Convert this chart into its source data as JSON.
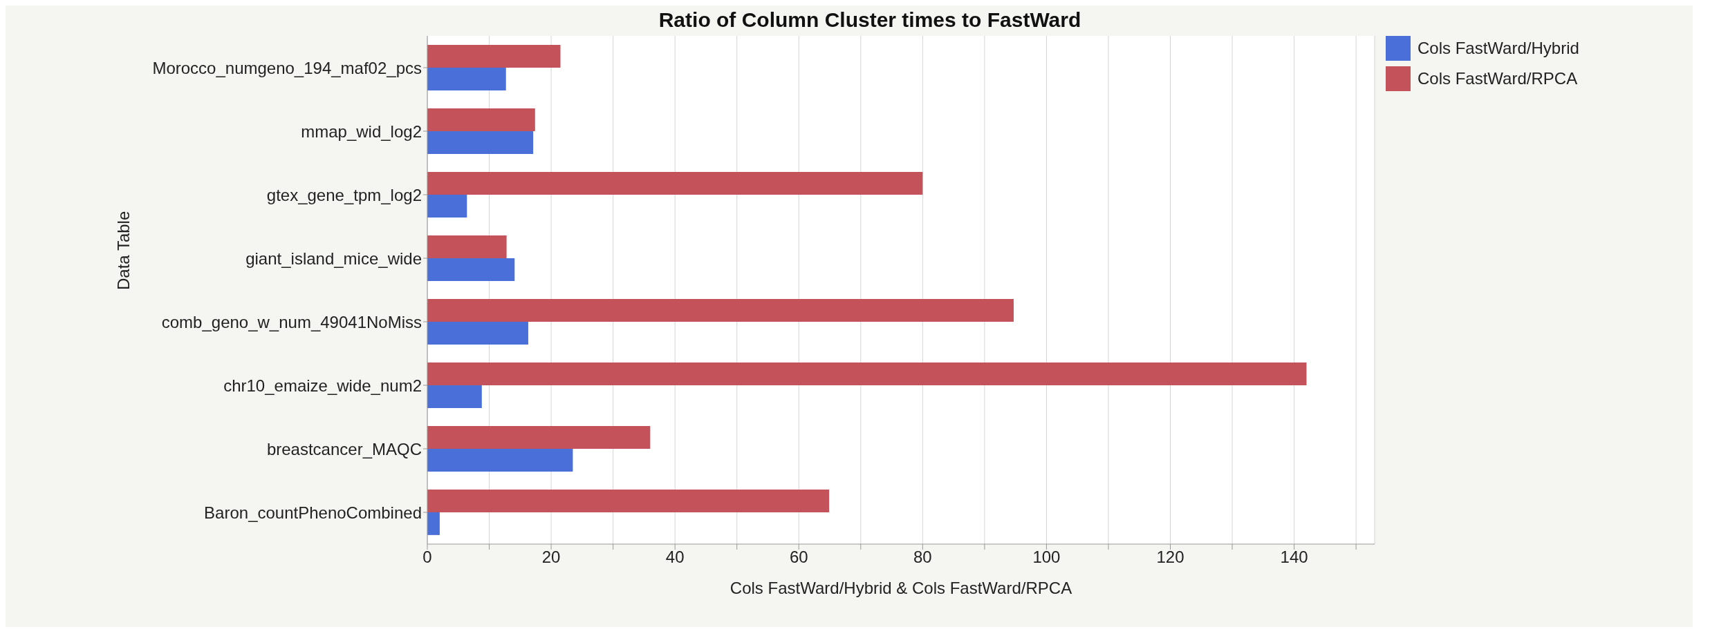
{
  "chart_data": {
    "type": "bar",
    "orientation": "horizontal",
    "title": "Ratio of Column Cluster times to FastWard",
    "xlabel": "Cols FastWard/Hybrid & Cols FastWard/RPCA",
    "ylabel": "Data Table",
    "categories": [
      "Morocco_numgeno_194_maf02_pcs",
      "mmap_wid_log2",
      "gtex_gene_tpm_log2",
      "giant_island_mice_wide",
      "comb_geno_w_num_49041NoMiss",
      "chr10_emaize_wide_num2",
      "breastcancer_MAQC",
      "Baron_countPhenoCombined"
    ],
    "series": [
      {
        "name": "Cols FastWard/Hybrid",
        "color": "#4a6fd8",
        "values": [
          12.7,
          17.1,
          6.4,
          14.1,
          16.3,
          8.8,
          23.5,
          2.0
        ]
      },
      {
        "name": "Cols FastWard/RPCA",
        "color": "#c4525a",
        "values": [
          21.5,
          17.4,
          80,
          12.8,
          94.7,
          142,
          36,
          64.9
        ]
      }
    ],
    "xlim": [
      0,
      153
    ],
    "xticks": [
      0,
      {
        "value": 10,
        "label": null
      },
      20,
      {
        "value": 30,
        "label": null
      },
      40,
      {
        "value": 50,
        "label": null
      },
      60,
      {
        "value": 70,
        "label": null
      },
      80,
      {
        "value": 90,
        "label": null
      },
      100,
      {
        "value": 110,
        "label": null
      },
      120,
      {
        "value": 130,
        "label": null
      },
      140,
      {
        "value": 150,
        "label": null
      }
    ],
    "grid": "x",
    "legend": "top right"
  }
}
